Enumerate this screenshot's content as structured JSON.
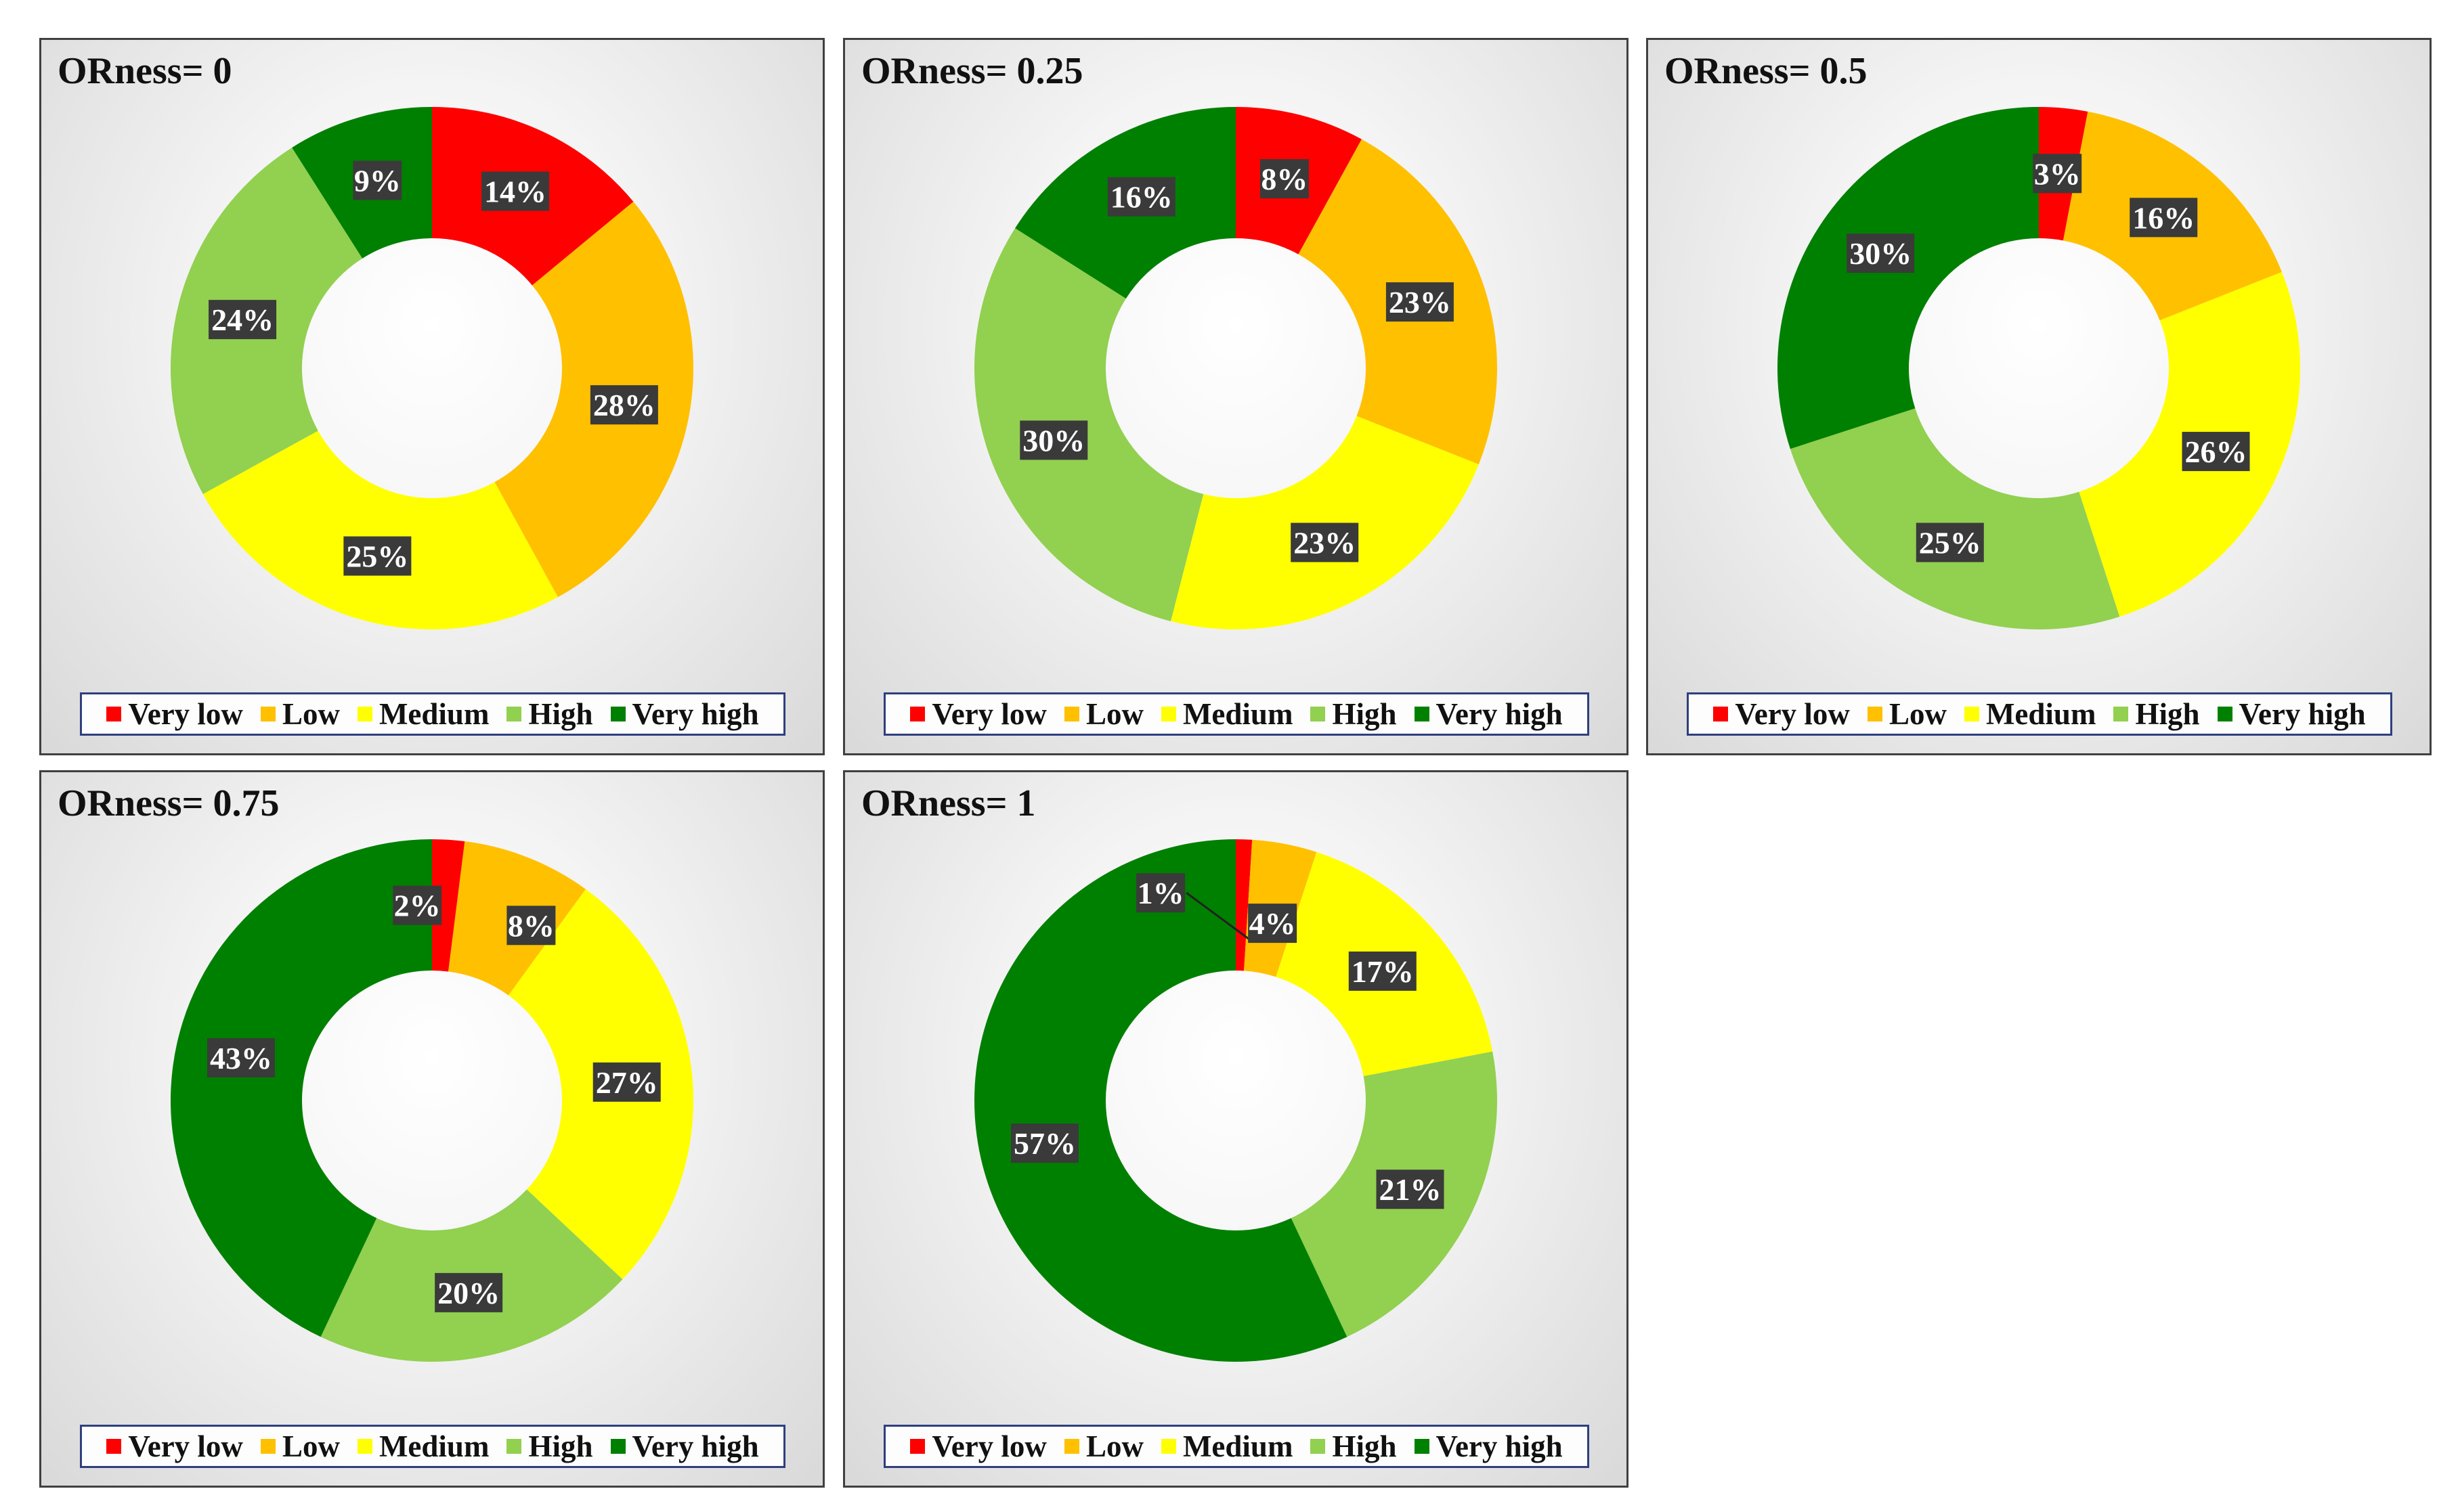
{
  "legend_labels": [
    "Very low",
    "Low",
    "Medium",
    "High",
    "Very high"
  ],
  "colors": [
    "#ff0000",
    "#ffc000",
    "#ffff00",
    "#92d050",
    "#008000"
  ],
  "chart_data": [
    {
      "type": "pie",
      "subtype": "donut",
      "title": "ORness= 0",
      "categories": [
        "Very low",
        "Low",
        "Medium",
        "High",
        "Very high"
      ],
      "values": [
        14,
        28,
        25,
        24,
        9
      ],
      "labels": [
        "14%",
        "28%",
        "25%",
        "24%",
        "9%"
      ]
    },
    {
      "type": "pie",
      "subtype": "donut",
      "title": "ORness= 0.25",
      "categories": [
        "Very low",
        "Low",
        "Medium",
        "High",
        "Very high"
      ],
      "values": [
        8,
        23,
        23,
        30,
        16
      ],
      "labels": [
        "8%",
        "23%",
        "23%",
        "30%",
        "16%"
      ]
    },
    {
      "type": "pie",
      "subtype": "donut",
      "title": "ORness= 0.5",
      "categories": [
        "Very low",
        "Low",
        "Medium",
        "High",
        "Very high"
      ],
      "values": [
        3,
        16,
        26,
        25,
        30
      ],
      "labels": [
        "3%",
        "16%",
        "26%",
        "25%",
        "30%"
      ]
    },
    {
      "type": "pie",
      "subtype": "donut",
      "title": "ORness= 0.75",
      "categories": [
        "Very low",
        "Low",
        "Medium",
        "High",
        "Very high"
      ],
      "values": [
        2,
        8,
        27,
        20,
        43
      ],
      "labels": [
        "2%",
        "8%",
        "27%",
        "20%",
        "43%"
      ]
    },
    {
      "type": "pie",
      "subtype": "donut",
      "title": "ORness= 1",
      "categories": [
        "Very low",
        "Low",
        "Medium",
        "High",
        "Very high"
      ],
      "values": [
        1,
        4,
        17,
        21,
        57
      ],
      "labels": [
        "1%",
        "4%",
        "17%",
        "21%",
        "57%"
      ]
    }
  ]
}
